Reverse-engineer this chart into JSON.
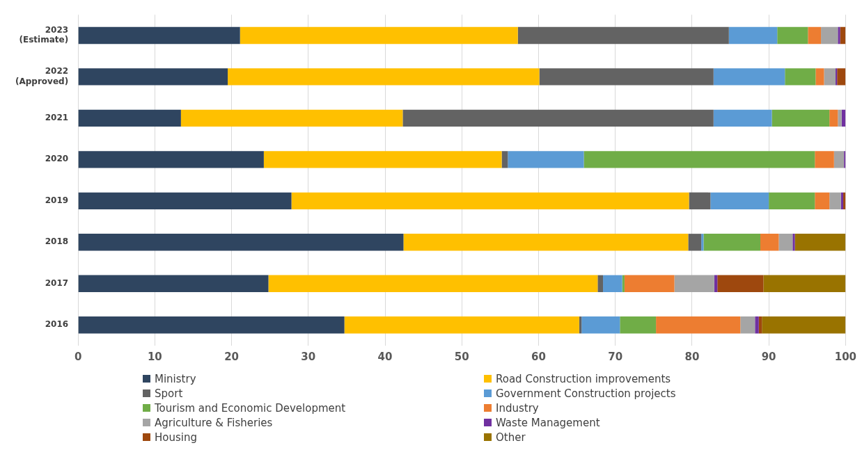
{
  "chart_data": {
    "type": "bar",
    "orientation": "horizontal",
    "stacked": true,
    "categories": [
      "2023 (Estimate)",
      "2022 (Approved)",
      "2021",
      "2020",
      "2019",
      "2018",
      "2017",
      "2016"
    ],
    "series": [
      {
        "name": "Ministry",
        "color": "#2f4560",
        "values": [
          21.1,
          19.5,
          13.4,
          24.2,
          27.8,
          42.4,
          24.8,
          34.7
        ]
      },
      {
        "name": "Road Construction improvements",
        "color": "#ffc000",
        "values": [
          36.2,
          40.6,
          28.9,
          31.0,
          51.8,
          37.1,
          42.9,
          30.6
        ]
      },
      {
        "name": "Sport",
        "color": "#636363",
        "values": [
          27.5,
          22.7,
          40.5,
          0.8,
          2.8,
          1.7,
          0.7,
          0.3
        ]
      },
      {
        "name": "Government Construction projects",
        "color": "#5b9bd5",
        "values": [
          6.3,
          9.3,
          7.6,
          9.9,
          7.6,
          0.3,
          2.5,
          5.0
        ]
      },
      {
        "name": "Tourism and Economic Development",
        "color": "#70ad47",
        "values": [
          4.0,
          4.0,
          7.5,
          30.1,
          6.0,
          7.4,
          0.3,
          4.7
        ]
      },
      {
        "name": "Industry",
        "color": "#ed7d31",
        "values": [
          1.7,
          1.1,
          1.1,
          2.5,
          1.9,
          2.4,
          6.5,
          11.0
        ]
      },
      {
        "name": "Agriculture & Fisheries",
        "color": "#a5a5a5",
        "values": [
          2.2,
          1.5,
          0.5,
          1.3,
          1.5,
          1.8,
          5.2,
          1.9
        ]
      },
      {
        "name": "Waste Management",
        "color": "#7030a0",
        "values": [
          0.3,
          0.2,
          0.5,
          0.2,
          0.3,
          0.3,
          0.4,
          0.5
        ]
      },
      {
        "name": "Housing",
        "color": "#9e480e",
        "values": [
          0.7,
          1.1,
          0,
          0,
          0.3,
          0,
          6.0,
          0.4
        ]
      },
      {
        "name": "Other",
        "color": "#997300",
        "values": [
          0,
          0,
          0,
          0,
          0,
          6.6,
          10.7,
          10.9
        ]
      }
    ],
    "xlim": [
      0,
      100
    ],
    "xticks": [
      0,
      10,
      20,
      30,
      40,
      50,
      60,
      70,
      80,
      90,
      100
    ],
    "grid": "x",
    "legend": "bottom"
  }
}
